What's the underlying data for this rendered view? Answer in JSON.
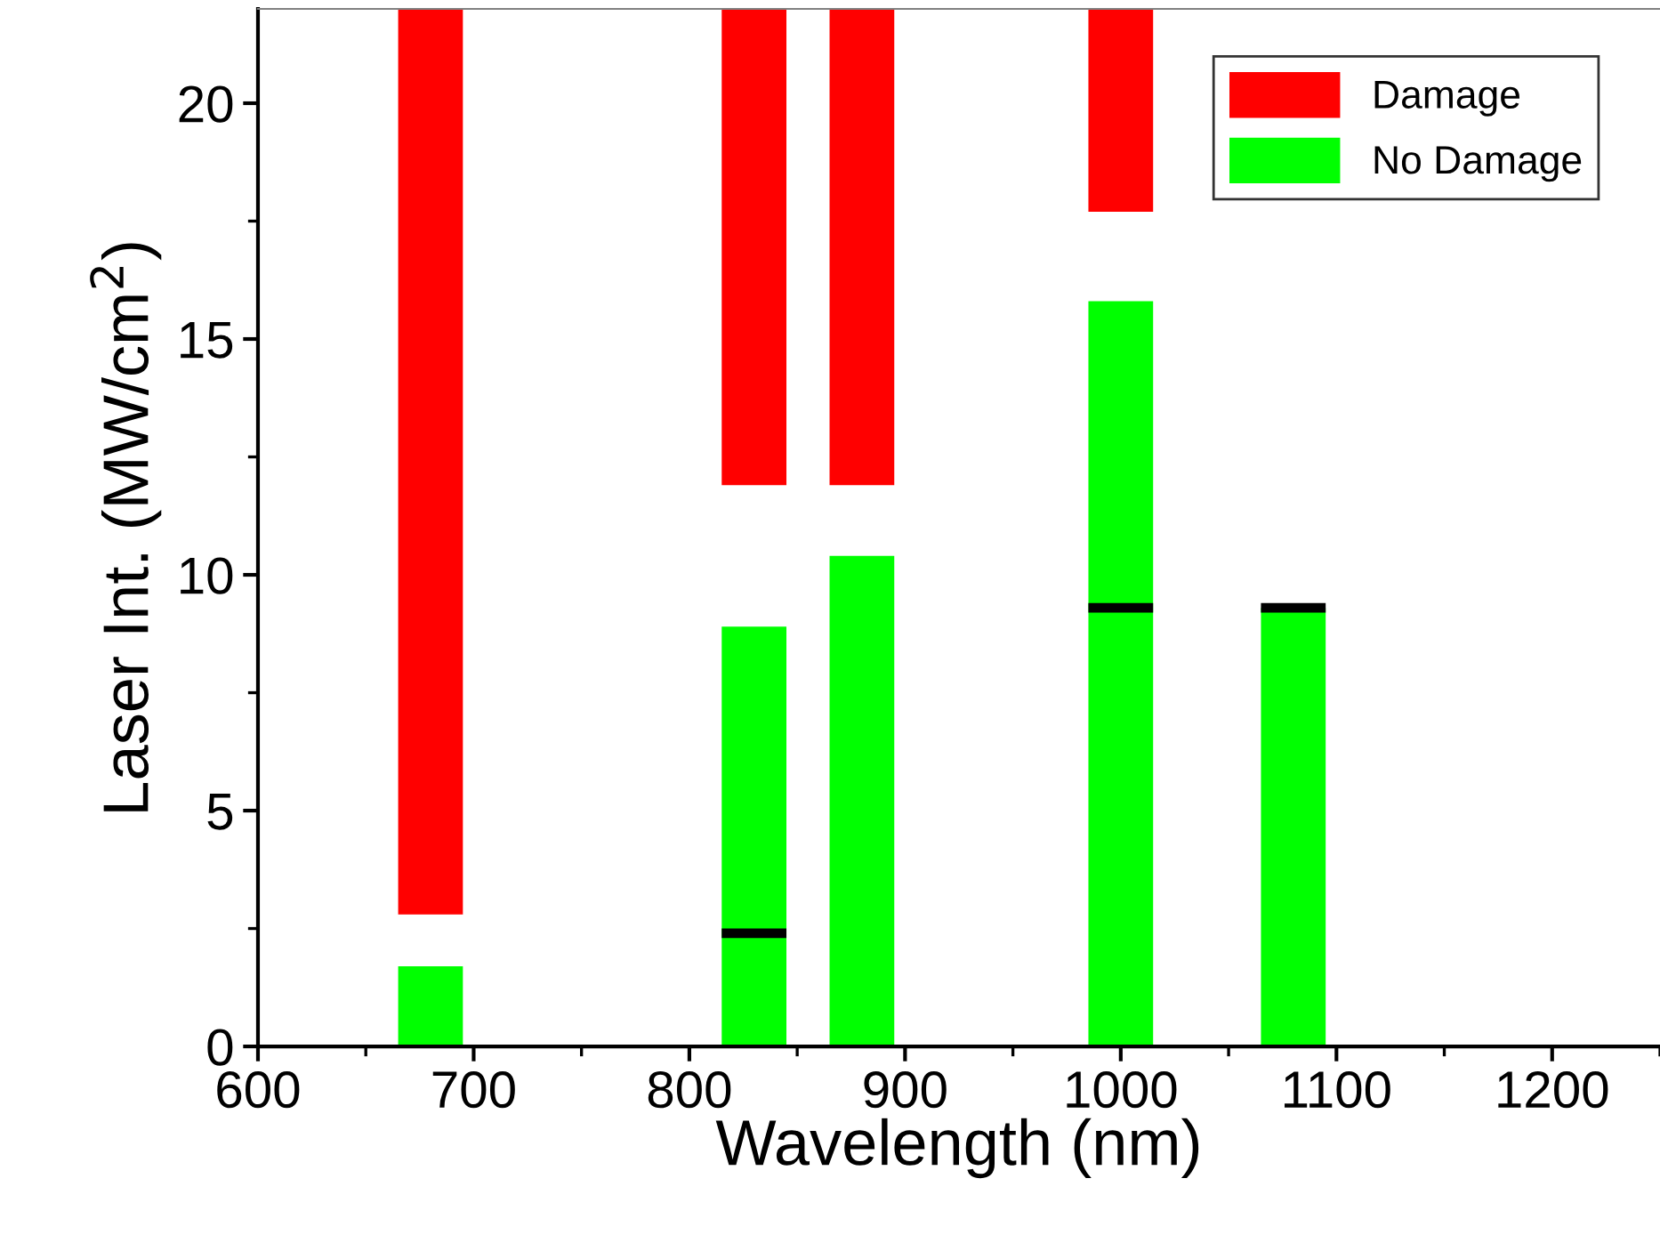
{
  "chart_data": {
    "type": "bar",
    "xlabel": "Wavelength (nm)",
    "ylabel": "Laser Int. (MW/cm$^{2}$)",
    "series": [
      {
        "name": "Damage",
        "color": "#ff0000",
        "x": [
          680,
          830,
          880,
          1000
        ],
        "base": [
          2.8,
          11.9,
          11.9,
          17.7
        ],
        "values": [
          19.2,
          10.1,
          10.1,
          4.3
        ]
      },
      {
        "name": "No Damage",
        "color": "#00ff00",
        "x": [
          680,
          830,
          880,
          1000,
          1080
        ],
        "values": [
          1.7,
          8.9,
          10.4,
          15.8,
          9.3
        ]
      },
      {
        "color": "#000000",
        "x": [
          830,
          1000,
          1080
        ],
        "base": [
          2.3,
          9.2,
          9.2
        ],
        "values": [
          0.2,
          0.2,
          0.2
        ]
      }
    ],
    "xlim": [
      600,
      1250
    ],
    "xticks": [
      600,
      700,
      800,
      900,
      1000,
      1100,
      1200
    ],
    "ylim": [
      0,
      22
    ],
    "yticks": [
      0,
      5,
      10,
      15,
      20
    ],
    "grid": false,
    "legend": "top right"
  }
}
